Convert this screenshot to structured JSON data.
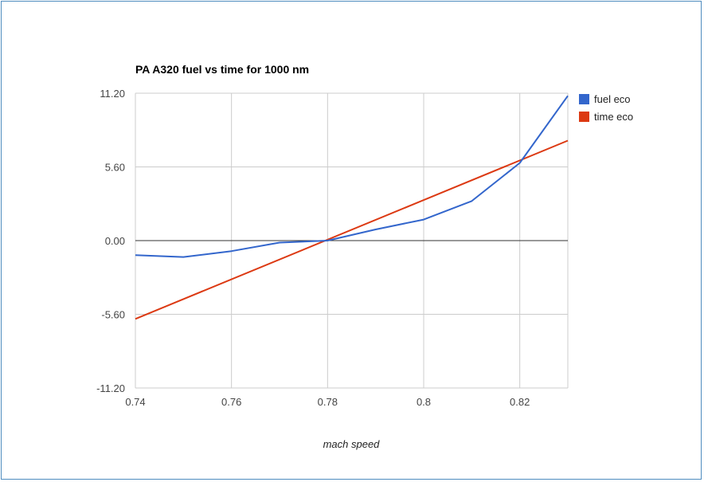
{
  "chart_data": {
    "type": "line",
    "title": "PA A320 fuel vs time for 1000 nm",
    "xlabel": "mach speed",
    "ylabel": "",
    "xlim": [
      0.74,
      0.83
    ],
    "ylim": [
      -11.2,
      11.2
    ],
    "x_ticks": [
      "0.74",
      "0.76",
      "0.78",
      "0.8",
      "0.82"
    ],
    "x_tick_values": [
      0.74,
      0.76,
      0.78,
      0.8,
      0.82
    ],
    "y_ticks": [
      "11.20",
      "5.60",
      "0.00",
      "-5.60",
      "-11.20"
    ],
    "y_tick_values": [
      11.2,
      5.6,
      0,
      -5.6,
      -11.2
    ],
    "grid": true,
    "legend_position": "right",
    "series": [
      {
        "name": "fuel eco",
        "color": "#3366cc",
        "x": [
          0.74,
          0.75,
          0.76,
          0.77,
          0.78,
          0.79,
          0.8,
          0.81,
          0.82,
          0.83
        ],
        "y": [
          -1.1,
          -1.25,
          -0.8,
          -0.15,
          0.0,
          0.85,
          1.6,
          3.0,
          5.9,
          11.0
        ]
      },
      {
        "name": "time eco",
        "color": "#dc3912",
        "x": [
          0.74,
          0.83
        ],
        "y": [
          -5.95,
          7.6
        ]
      }
    ]
  }
}
